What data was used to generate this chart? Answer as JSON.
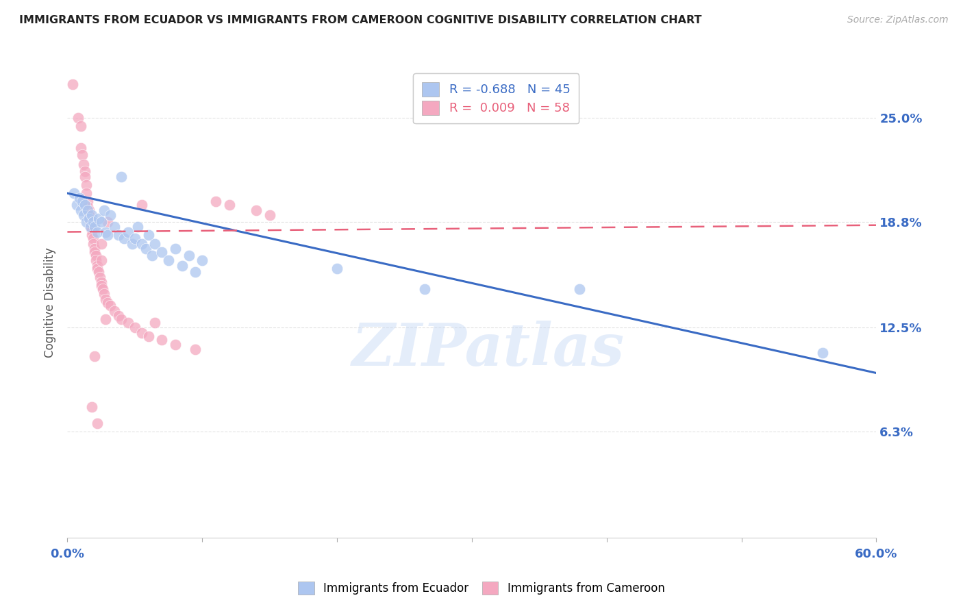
{
  "title": "IMMIGRANTS FROM ECUADOR VS IMMIGRANTS FROM CAMEROON COGNITIVE DISABILITY CORRELATION CHART",
  "source": "Source: ZipAtlas.com",
  "ylabel": "Cognitive Disability",
  "ytick_labels": [
    "25.0%",
    "18.8%",
    "12.5%",
    "6.3%"
  ],
  "ytick_values": [
    0.25,
    0.188,
    0.125,
    0.063
  ],
  "xlim": [
    0.0,
    0.6
  ],
  "ylim": [
    0.0,
    0.28
  ],
  "ecuador_color": "#adc6f0",
  "cameroon_color": "#f4a8c0",
  "ecuador_line_color": "#3a6bc4",
  "cameroon_line_color": "#e8607a",
  "ecuador_scatter": [
    [
      0.005,
      0.205
    ],
    [
      0.007,
      0.198
    ],
    [
      0.009,
      0.202
    ],
    [
      0.01,
      0.195
    ],
    [
      0.011,
      0.2
    ],
    [
      0.012,
      0.192
    ],
    [
      0.013,
      0.198
    ],
    [
      0.014,
      0.188
    ],
    [
      0.015,
      0.195
    ],
    [
      0.016,
      0.19
    ],
    [
      0.017,
      0.185
    ],
    [
      0.018,
      0.192
    ],
    [
      0.019,
      0.188
    ],
    [
      0.02,
      0.185
    ],
    [
      0.022,
      0.182
    ],
    [
      0.023,
      0.19
    ],
    [
      0.025,
      0.188
    ],
    [
      0.027,
      0.195
    ],
    [
      0.028,
      0.182
    ],
    [
      0.03,
      0.18
    ],
    [
      0.032,
      0.192
    ],
    [
      0.035,
      0.185
    ],
    [
      0.038,
      0.18
    ],
    [
      0.04,
      0.215
    ],
    [
      0.042,
      0.178
    ],
    [
      0.045,
      0.182
    ],
    [
      0.048,
      0.175
    ],
    [
      0.05,
      0.178
    ],
    [
      0.052,
      0.185
    ],
    [
      0.055,
      0.175
    ],
    [
      0.058,
      0.172
    ],
    [
      0.06,
      0.18
    ],
    [
      0.063,
      0.168
    ],
    [
      0.065,
      0.175
    ],
    [
      0.07,
      0.17
    ],
    [
      0.075,
      0.165
    ],
    [
      0.08,
      0.172
    ],
    [
      0.085,
      0.162
    ],
    [
      0.09,
      0.168
    ],
    [
      0.095,
      0.158
    ],
    [
      0.1,
      0.165
    ],
    [
      0.2,
      0.16
    ],
    [
      0.265,
      0.148
    ],
    [
      0.38,
      0.148
    ],
    [
      0.56,
      0.11
    ]
  ],
  "cameroon_scatter": [
    [
      0.004,
      0.27
    ],
    [
      0.008,
      0.25
    ],
    [
      0.01,
      0.245
    ],
    [
      0.01,
      0.232
    ],
    [
      0.011,
      0.228
    ],
    [
      0.012,
      0.222
    ],
    [
      0.013,
      0.218
    ],
    [
      0.013,
      0.215
    ],
    [
      0.014,
      0.21
    ],
    [
      0.014,
      0.205
    ],
    [
      0.015,
      0.2
    ],
    [
      0.015,
      0.197
    ],
    [
      0.016,
      0.195
    ],
    [
      0.016,
      0.192
    ],
    [
      0.017,
      0.188
    ],
    [
      0.017,
      0.185
    ],
    [
      0.018,
      0.183
    ],
    [
      0.018,
      0.18
    ],
    [
      0.019,
      0.178
    ],
    [
      0.019,
      0.175
    ],
    [
      0.02,
      0.172
    ],
    [
      0.02,
      0.17
    ],
    [
      0.021,
      0.168
    ],
    [
      0.021,
      0.165
    ],
    [
      0.022,
      0.162
    ],
    [
      0.022,
      0.16
    ],
    [
      0.023,
      0.158
    ],
    [
      0.024,
      0.155
    ],
    [
      0.025,
      0.152
    ],
    [
      0.025,
      0.15
    ],
    [
      0.026,
      0.148
    ],
    [
      0.027,
      0.145
    ],
    [
      0.028,
      0.142
    ],
    [
      0.03,
      0.14
    ],
    [
      0.032,
      0.138
    ],
    [
      0.035,
      0.135
    ],
    [
      0.038,
      0.132
    ],
    [
      0.04,
      0.13
    ],
    [
      0.045,
      0.128
    ],
    [
      0.05,
      0.125
    ],
    [
      0.055,
      0.122
    ],
    [
      0.06,
      0.12
    ],
    [
      0.07,
      0.118
    ],
    [
      0.08,
      0.115
    ],
    [
      0.095,
      0.112
    ],
    [
      0.11,
      0.2
    ],
    [
      0.12,
      0.198
    ],
    [
      0.14,
      0.195
    ],
    [
      0.15,
      0.192
    ],
    [
      0.025,
      0.175
    ],
    [
      0.03,
      0.188
    ],
    [
      0.055,
      0.198
    ],
    [
      0.065,
      0.128
    ],
    [
      0.025,
      0.165
    ],
    [
      0.028,
      0.13
    ],
    [
      0.02,
      0.108
    ],
    [
      0.018,
      0.078
    ],
    [
      0.022,
      0.068
    ]
  ],
  "ecuador_trend_x": [
    0.0,
    0.6
  ],
  "ecuador_trend_y": [
    0.205,
    0.098
  ],
  "cameroon_trend_x": [
    0.0,
    0.6
  ],
  "cameroon_trend_y": [
    0.182,
    0.186
  ],
  "watermark": "ZIPatlas",
  "background_color": "#ffffff",
  "grid_color": "#d8d8d8"
}
